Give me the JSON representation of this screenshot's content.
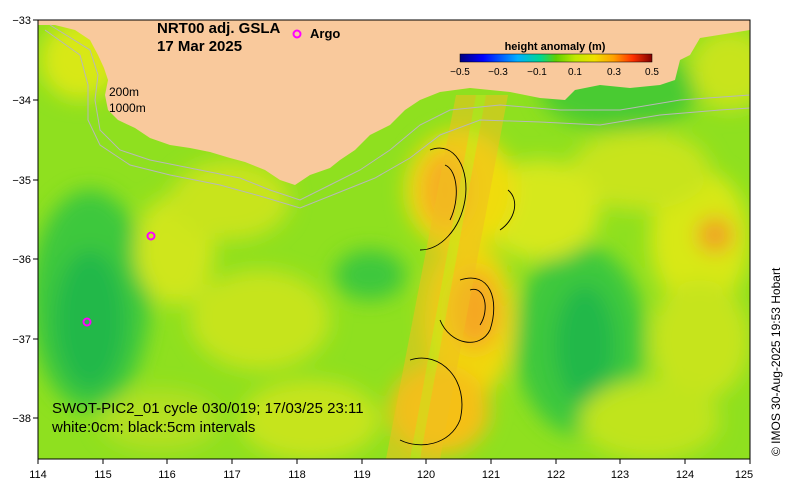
{
  "map": {
    "title_line1": "NRT00 adj. GSLA",
    "title_line2": "17 Mar 2025",
    "legend_argo": "Argo",
    "colorbar": {
      "label": "height anomaly (m)",
      "ticks": [
        "−0.5",
        "−0.3",
        "−0.1",
        "0.1",
        "0.3",
        "0.5"
      ],
      "colors": [
        "#00007f",
        "#0000ff",
        "#00a0ff",
        "#00e0c0",
        "#20c040",
        "#60d000",
        "#b0e000",
        "#f0f000",
        "#ffc000",
        "#ff7000",
        "#e00000",
        "#800000"
      ]
    },
    "isobath_labels": [
      "200m",
      "1000m"
    ],
    "x_ticks": [
      "114",
      "115",
      "116",
      "117",
      "118",
      "119",
      "120",
      "121",
      "122",
      "123",
      "124",
      "125"
    ],
    "y_ticks": [
      "−33",
      "−34",
      "−35",
      "−36",
      "−37",
      "−38"
    ],
    "swot_line": "SWOT-PIC2_01 cycle 030/019; 17/03/25 23:11",
    "contour_note": "white:0cm; black:5cm intervals",
    "credit": "© IMOS 30-Aug-2025 19:53 Hobart",
    "colors": {
      "land": "#f9c99c",
      "ocean_base": "#8fe01f",
      "argo_marker": "#ff00ff",
      "isobath": "#b8b8b8"
    }
  }
}
